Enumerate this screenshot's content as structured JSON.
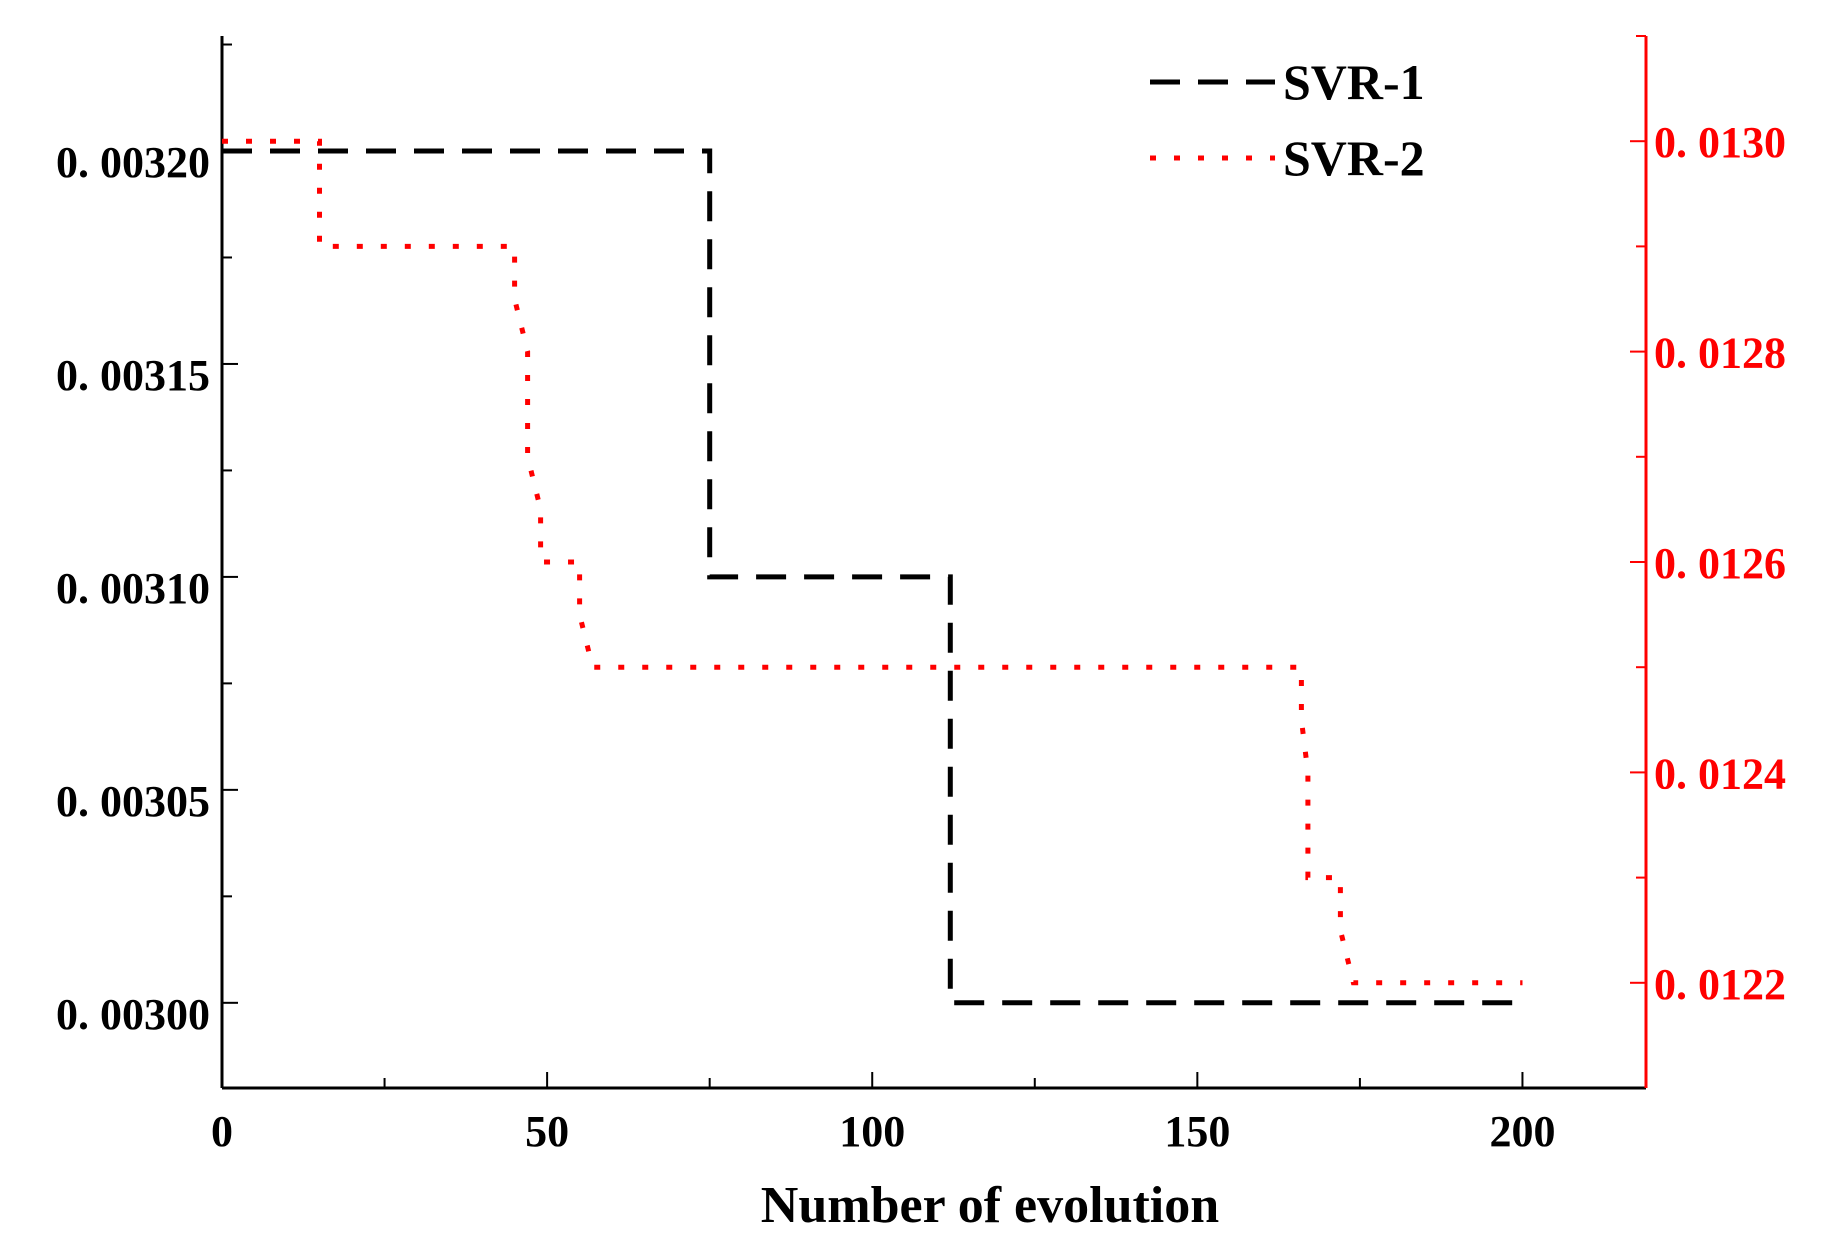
{
  "chart_data": {
    "type": "line",
    "title": "",
    "xlabel": "Number of evolution",
    "ylabel_left": "",
    "ylabel_right": "",
    "xlim": [
      0,
      219
    ],
    "ylim_left": [
      0.00298,
      0.003227
    ],
    "ylim_right": [
      0.0121,
      0.0131
    ],
    "x_ticks": [
      0,
      50,
      100,
      150,
      200
    ],
    "x_tick_labels": [
      "0",
      "50",
      "100",
      "150",
      "200"
    ],
    "y_left_ticks": [
      0.003,
      0.00305,
      0.0031,
      0.00315,
      0.0032
    ],
    "y_left_tick_labels": [
      "0. 00300",
      "0. 00305",
      "0. 00310",
      "0. 00315",
      "0. 00320"
    ],
    "y_right_ticks": [
      0.0122,
      0.0124,
      0.0126,
      0.0128,
      0.013
    ],
    "y_right_tick_labels": [
      "0. 0122",
      "0. 0124",
      "0. 0126",
      "0. 0128",
      "0. 0130"
    ],
    "grid": false,
    "legend_position": "top-right",
    "colors": {
      "left_axis": "#000000",
      "right_axis": "#ff0000"
    },
    "series": [
      {
        "name": "SVR-1",
        "axis": "left",
        "color": "#000000",
        "style": "dashed",
        "x": [
          0,
          75,
          75,
          112,
          112,
          200
        ],
        "y": [
          0.0032,
          0.0032,
          0.0031,
          0.0031,
          0.003,
          0.003
        ]
      },
      {
        "name": "SVR-2",
        "axis": "right",
        "color": "#ff0000",
        "style": "dotted",
        "x": [
          0,
          15,
          15,
          45,
          45,
          47,
          47,
          49,
          49,
          55,
          55,
          57,
          57,
          166,
          166,
          167,
          167,
          172,
          172,
          174,
          174,
          200
        ],
        "y": [
          0.013,
          0.013,
          0.0129,
          0.0129,
          0.01285,
          0.0128,
          0.0127,
          0.01265,
          0.0126,
          0.0126,
          0.01255,
          0.0125,
          0.0125,
          0.0125,
          0.01245,
          0.0124,
          0.0123,
          0.0123,
          0.01225,
          0.0122,
          0.0122,
          0.0122
        ]
      }
    ]
  }
}
